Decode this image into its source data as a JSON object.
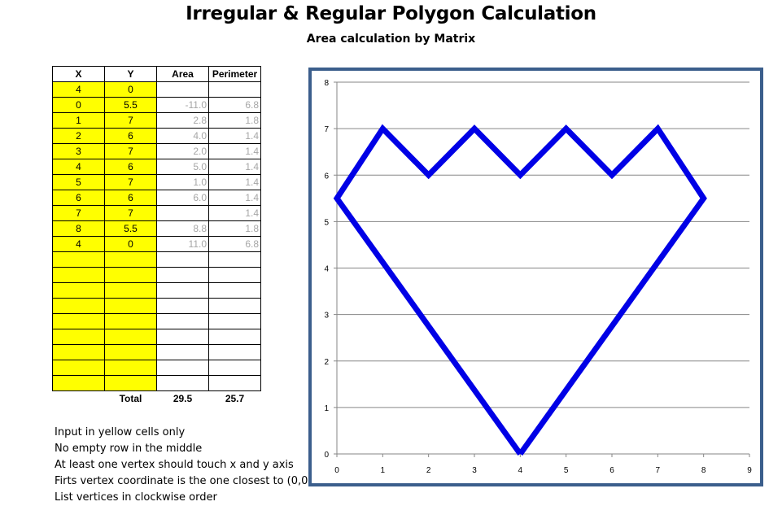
{
  "title": "Irregular & Regular Polygon Calculation",
  "subtitle": "Area calculation by Matrix",
  "table": {
    "headers": [
      "X",
      "Y",
      "Area",
      "Perimeter"
    ],
    "rows": [
      {
        "x": "4",
        "y": "0",
        "area": "",
        "perimeter": ""
      },
      {
        "x": "0",
        "y": "5.5",
        "area": "-11.0",
        "perimeter": "6.8"
      },
      {
        "x": "1",
        "y": "7",
        "area": "2.8",
        "perimeter": "1.8"
      },
      {
        "x": "2",
        "y": "6",
        "area": "4.0",
        "perimeter": "1.4"
      },
      {
        "x": "3",
        "y": "7",
        "area": "2.0",
        "perimeter": "1.4"
      },
      {
        "x": "4",
        "y": "6",
        "area": "5.0",
        "perimeter": "1.4"
      },
      {
        "x": "5",
        "y": "7",
        "area": "1.0",
        "perimeter": "1.4"
      },
      {
        "x": "6",
        "y": "6",
        "area": "6.0",
        "perimeter": "1.4"
      },
      {
        "x": "7",
        "y": "7",
        "area": "",
        "perimeter": "1.4"
      },
      {
        "x": "8",
        "y": "5.5",
        "area": "8.8",
        "perimeter": "1.8"
      },
      {
        "x": "4",
        "y": "0",
        "area": "11.0",
        "perimeter": "6.8"
      },
      {
        "x": "",
        "y": "",
        "area": "",
        "perimeter": ""
      },
      {
        "x": "",
        "y": "",
        "area": "",
        "perimeter": ""
      },
      {
        "x": "",
        "y": "",
        "area": "",
        "perimeter": ""
      },
      {
        "x": "",
        "y": "",
        "area": "",
        "perimeter": ""
      },
      {
        "x": "",
        "y": "",
        "area": "",
        "perimeter": ""
      },
      {
        "x": "",
        "y": "",
        "area": "",
        "perimeter": ""
      },
      {
        "x": "",
        "y": "",
        "area": "",
        "perimeter": ""
      },
      {
        "x": "",
        "y": "",
        "area": "",
        "perimeter": ""
      },
      {
        "x": "",
        "y": "",
        "area": "",
        "perimeter": ""
      }
    ],
    "total_label": "Total",
    "total_area": "29.5",
    "total_perimeter": "25.7"
  },
  "notes": [
    "Input in yellow cells only",
    "No empty row in the middle",
    "At least one vertex should touch x and y axis",
    "Firts vertex coordinate is the one closest to (0,0)",
    "List vertices in clockwise order"
  ],
  "colors": {
    "input_cell": "#ffff00",
    "calc_text": "#a6a6a6",
    "series_line": "#0000e6",
    "chart_border": "#3b5e8c",
    "gridline": "#868686"
  },
  "chart_data": {
    "type": "scatter",
    "xlim": [
      0,
      9
    ],
    "ylim": [
      0,
      8
    ],
    "x_ticks": [
      0,
      1,
      2,
      3,
      4,
      5,
      6,
      7,
      8,
      9
    ],
    "y_ticks": [
      0,
      1,
      2,
      3,
      4,
      5,
      6,
      7,
      8
    ],
    "grid": "horizontal",
    "legend": "none",
    "series": [
      {
        "x": [
          4,
          0,
          1,
          2,
          3,
          4,
          5,
          6,
          7,
          8,
          4
        ],
        "y": [
          0,
          5.5,
          7,
          6,
          7,
          6,
          7,
          6,
          7,
          5.5,
          0
        ]
      }
    ]
  }
}
